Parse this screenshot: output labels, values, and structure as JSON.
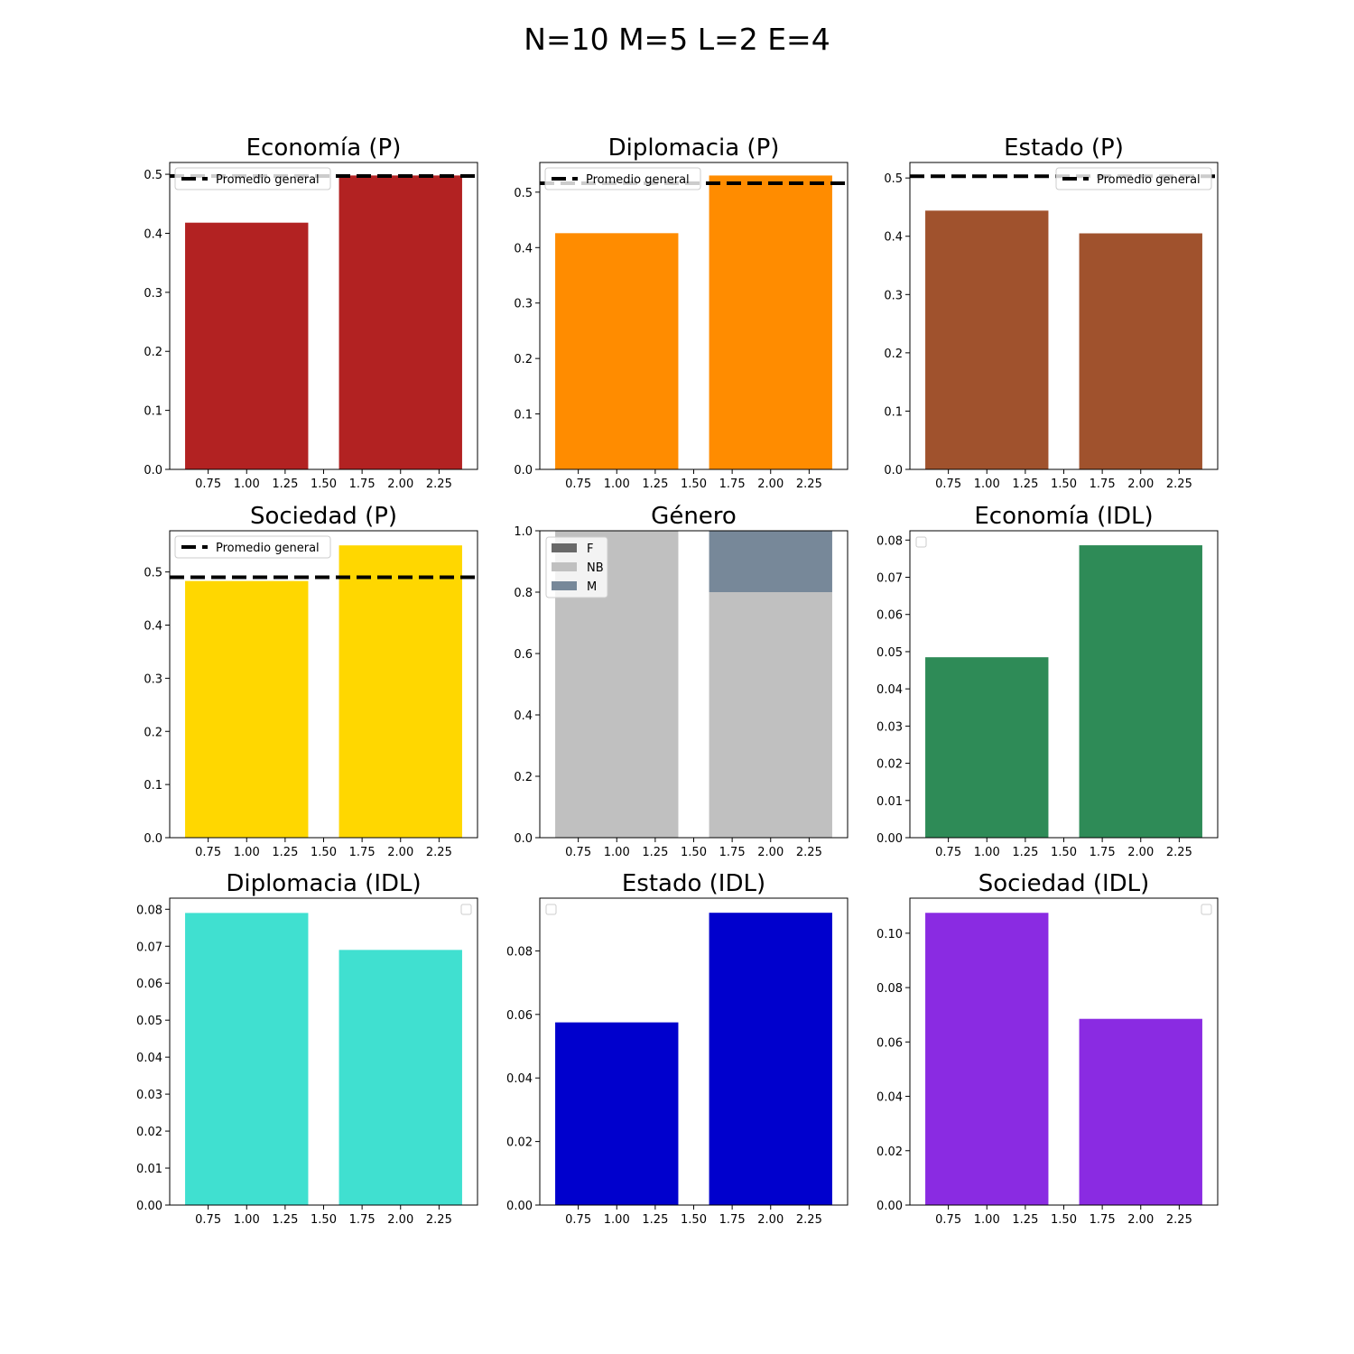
{
  "suptitle": "N=10 M=5 L=2 E=4",
  "chart_data": [
    {
      "type": "bar",
      "title": "Economía (P)",
      "x": [
        1.0,
        2.0
      ],
      "values": [
        0.418,
        0.498
      ],
      "color": "#b22222",
      "reference_line": {
        "label": "Promedio general",
        "value": 0.497
      },
      "legend": {
        "position": "top-left",
        "entries": [
          "Promedio general"
        ]
      },
      "xlim": [
        0.5,
        2.5
      ],
      "ylim": [
        0,
        0.52
      ],
      "xticks": [
        "0.75",
        "1.00",
        "1.25",
        "1.50",
        "1.75",
        "2.00",
        "2.25"
      ],
      "yticks": [
        "0.0",
        "0.1",
        "0.2",
        "0.3",
        "0.4",
        "0.5"
      ]
    },
    {
      "type": "bar",
      "title": "Diplomacia (P)",
      "x": [
        1.0,
        2.0
      ],
      "values": [
        0.426,
        0.53
      ],
      "color": "#ff8c00",
      "reference_line": {
        "label": "Promedio general",
        "value": 0.516
      },
      "legend": {
        "position": "top-left",
        "entries": [
          "Promedio general"
        ]
      },
      "xlim": [
        0.5,
        2.5
      ],
      "ylim": [
        0,
        0.5535
      ],
      "xticks": [
        "0.75",
        "1.00",
        "1.25",
        "1.50",
        "1.75",
        "2.00",
        "2.25"
      ],
      "yticks": [
        "0.0",
        "0.1",
        "0.2",
        "0.3",
        "0.4",
        "0.5"
      ]
    },
    {
      "type": "bar",
      "title": "Estado (P)",
      "x": [
        1.0,
        2.0
      ],
      "values": [
        0.444,
        0.405
      ],
      "color": "#a0522d",
      "reference_line": {
        "label": "Promedio general",
        "value": 0.503
      },
      "legend": {
        "position": "top-right",
        "entries": [
          "Promedio general"
        ]
      },
      "xlim": [
        0.5,
        2.5
      ],
      "ylim": [
        0,
        0.5266
      ],
      "xticks": [
        "0.75",
        "1.00",
        "1.25",
        "1.50",
        "1.75",
        "2.00",
        "2.25"
      ],
      "yticks": [
        "0.0",
        "0.1",
        "0.2",
        "0.3",
        "0.4",
        "0.5"
      ]
    },
    {
      "type": "bar",
      "title": "Sociedad (P)",
      "x": [
        1.0,
        2.0
      ],
      "values": [
        0.483,
        0.55
      ],
      "color": "#ffd700",
      "reference_line": {
        "label": "Promedio general",
        "value": 0.49
      },
      "legend": {
        "position": "top-left",
        "entries": [
          "Promedio general"
        ]
      },
      "xlim": [
        0.5,
        2.5
      ],
      "ylim": [
        0,
        0.5775
      ],
      "xticks": [
        "0.75",
        "1.00",
        "1.25",
        "1.50",
        "1.75",
        "2.00",
        "2.25"
      ],
      "yticks": [
        "0.0",
        "0.1",
        "0.2",
        "0.3",
        "0.4",
        "0.5"
      ]
    },
    {
      "type": "stacked_bar",
      "title": "Género",
      "x": [
        1.0,
        2.0
      ],
      "series": [
        {
          "name": "F",
          "values": [
            0.0,
            0.0
          ],
          "color": "#696969"
        },
        {
          "name": "NB",
          "values": [
            1.0,
            0.8
          ],
          "color": "#c0c0c0"
        },
        {
          "name": "M",
          "values": [
            0.0,
            0.2
          ],
          "color": "#778899"
        }
      ],
      "legend": {
        "position": "top-left",
        "entries": [
          "F",
          "NB",
          "M"
        ]
      },
      "xlim": [
        0.5,
        2.5
      ],
      "ylim": [
        0,
        1.0
      ],
      "xticks": [
        "0.75",
        "1.00",
        "1.25",
        "1.50",
        "1.75",
        "2.00",
        "2.25"
      ],
      "yticks": [
        "0.0",
        "0.2",
        "0.4",
        "0.6",
        "0.8",
        "1.0"
      ]
    },
    {
      "type": "bar",
      "title": "Economía (IDL)",
      "x": [
        1.0,
        2.0
      ],
      "values": [
        0.0485,
        0.0786
      ],
      "color": "#2e8b57",
      "legend": {
        "position": "top-left",
        "entries": []
      },
      "xlim": [
        0.5,
        2.5
      ],
      "ylim": [
        0,
        0.0825
      ],
      "xticks": [
        "0.75",
        "1.00",
        "1.25",
        "1.50",
        "1.75",
        "2.00",
        "2.25"
      ],
      "yticks": [
        "0.00",
        "0.01",
        "0.02",
        "0.03",
        "0.04",
        "0.05",
        "0.06",
        "0.07",
        "0.08"
      ]
    },
    {
      "type": "bar",
      "title": "Diplomacia (IDL)",
      "x": [
        1.0,
        2.0
      ],
      "values": [
        0.079,
        0.069
      ],
      "color": "#40e0d0",
      "legend": {
        "position": "top-right",
        "entries": []
      },
      "xlim": [
        0.5,
        2.5
      ],
      "ylim": [
        0,
        0.083
      ],
      "xticks": [
        "0.75",
        "1.00",
        "1.25",
        "1.50",
        "1.75",
        "2.00",
        "2.25"
      ],
      "yticks": [
        "0.00",
        "0.01",
        "0.02",
        "0.03",
        "0.04",
        "0.05",
        "0.06",
        "0.07",
        "0.08"
      ]
    },
    {
      "type": "bar",
      "title": "Estado (IDL)",
      "x": [
        1.0,
        2.0
      ],
      "values": [
        0.0575,
        0.092
      ],
      "color": "#0000cd",
      "legend": {
        "position": "top-left",
        "entries": []
      },
      "xlim": [
        0.5,
        2.5
      ],
      "ylim": [
        0,
        0.0966
      ],
      "xticks": [
        "0.75",
        "1.00",
        "1.25",
        "1.50",
        "1.75",
        "2.00",
        "2.25"
      ],
      "yticks": [
        "0.00",
        "0.02",
        "0.04",
        "0.06",
        "0.08"
      ]
    },
    {
      "type": "bar",
      "title": "Sociedad (IDL)",
      "x": [
        1.0,
        2.0
      ],
      "values": [
        0.1075,
        0.0685
      ],
      "color": "#8a2be2",
      "legend": {
        "position": "top-right",
        "entries": []
      },
      "xlim": [
        0.5,
        2.5
      ],
      "ylim": [
        0,
        0.1129
      ],
      "xticks": [
        "0.75",
        "1.00",
        "1.25",
        "1.50",
        "1.75",
        "2.00",
        "2.25"
      ],
      "yticks": [
        "0.00",
        "0.02",
        "0.04",
        "0.06",
        "0.08",
        "0.10"
      ]
    }
  ]
}
